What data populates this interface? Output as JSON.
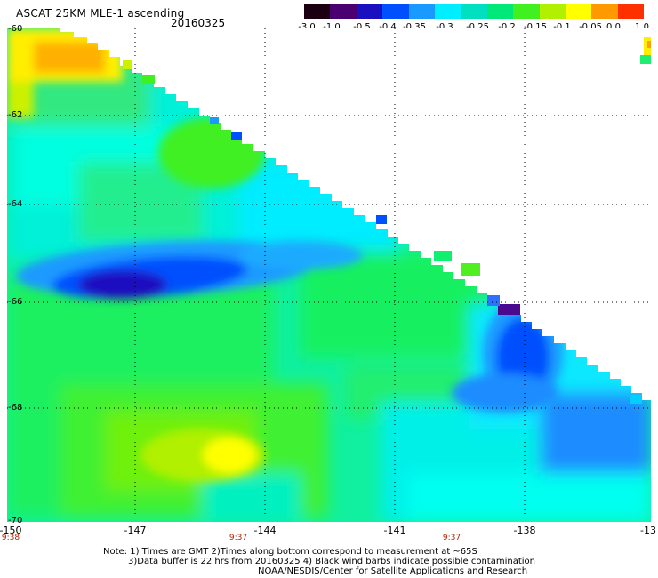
{
  "header": {
    "title": "ASCAT 25KM MLE-1 ascending",
    "date": "20160325"
  },
  "colorbar": {
    "labels": [
      "-3.0",
      "-1.0",
      "-0.5",
      "-0.4",
      "-0.35",
      "-0.3",
      "-0.25",
      "-0.2",
      "-0.15",
      "-0.1",
      "-0.05",
      "0.0",
      "1.0"
    ],
    "colors": [
      "#1a0010",
      "#4a0070",
      "#1a10c0",
      "#0050ff",
      "#1a9aff",
      "#00eeff",
      "#00e0c0",
      "#00e878",
      "#40f020",
      "#b0f000",
      "#ffff00",
      "#ff9900",
      "#ff3000"
    ]
  },
  "axes": {
    "lat_labels": [
      "-60",
      "-62",
      "-64",
      "-66",
      "-68",
      "-70"
    ],
    "lon_labels": [
      "-150",
      "-147",
      "-144",
      "-141",
      "-138",
      "-13"
    ],
    "time_labels": [
      "9:38",
      "9:37",
      "9:37"
    ]
  },
  "notes": [
    "Note: 1) Times are GMT 2)Times along bottom correspond to measurement at ~65S",
    "3)Data buffer is 22 hrs from 20160325 4) Black wind barbs indicate possible contamination",
    "NOAA/NESDIS/Center for Satellite Applications and Research"
  ]
}
